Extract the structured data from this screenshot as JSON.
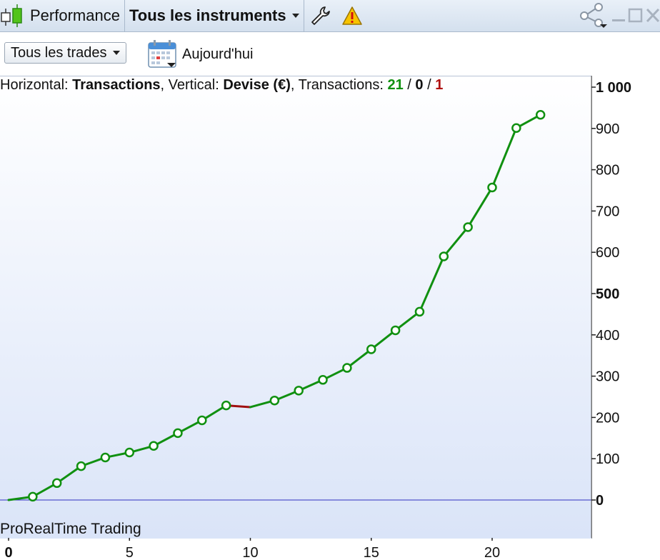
{
  "titlebar": {
    "app_label": "Performance",
    "instrument_label": "Tous les instruments"
  },
  "toolbar": {
    "trades_select": "Tous les trades",
    "date_label": "Aujourd'hui"
  },
  "info": {
    "h_prefix": "Horizontal: ",
    "h_value": "Transactions",
    "v_prefix": ", Vertical: ",
    "v_value": "Devise (€)",
    "t_prefix": ", Transactions: ",
    "t_win": "21",
    "sep1": " / ",
    "t_neutral": "0",
    "sep2": " / ",
    "t_loss": "1"
  },
  "watermark": "ProRealTime Trading",
  "colors": {
    "up": "#109010",
    "down": "#a01010",
    "zero_line": "#3030c0"
  },
  "icons": [
    "candlestick-icon",
    "wrench-icon",
    "warning-icon",
    "share-icon",
    "minimize-icon",
    "maximize-icon",
    "close-icon",
    "calendar-icon"
  ],
  "chart_data": {
    "type": "line",
    "x": [
      0,
      1,
      2,
      3,
      4,
      5,
      6,
      7,
      8,
      9,
      10,
      11,
      12,
      13,
      14,
      15,
      16,
      17,
      18,
      19,
      20,
      21,
      22
    ],
    "y": [
      0,
      8,
      41,
      82,
      103,
      115,
      131,
      162,
      193,
      229,
      225,
      241,
      265,
      291,
      320,
      365,
      411,
      456,
      590,
      661,
      757,
      901,
      933
    ],
    "segment_colors": [
      "up",
      "up",
      "up",
      "up",
      "up",
      "up",
      "up",
      "up",
      "up",
      "down",
      "up",
      "up",
      "up",
      "up",
      "up",
      "up",
      "up",
      "up",
      "up",
      "up",
      "up",
      "up"
    ],
    "marker_points": [
      1,
      2,
      3,
      4,
      5,
      6,
      7,
      8,
      9,
      11,
      12,
      13,
      14,
      15,
      16,
      17,
      18,
      19,
      20,
      21,
      22
    ],
    "xlim": [
      0,
      24
    ],
    "ylim": [
      -90,
      1035
    ],
    "x_ticks": [
      0,
      5,
      10,
      15,
      20
    ],
    "x_tick_labels": [
      "0",
      "5",
      "10",
      "15",
      "20"
    ],
    "y_ticks": [
      0,
      100,
      200,
      300,
      400,
      500,
      600,
      700,
      800,
      900,
      1000
    ],
    "y_tick_labels": [
      "0",
      "100",
      "200",
      "300",
      "400",
      "500",
      "600",
      "700",
      "800",
      "900",
      "1 000"
    ],
    "bold_y_ticks": [
      0,
      500,
      1000
    ],
    "bold_x_ticks": [
      0
    ],
    "grid": false
  }
}
